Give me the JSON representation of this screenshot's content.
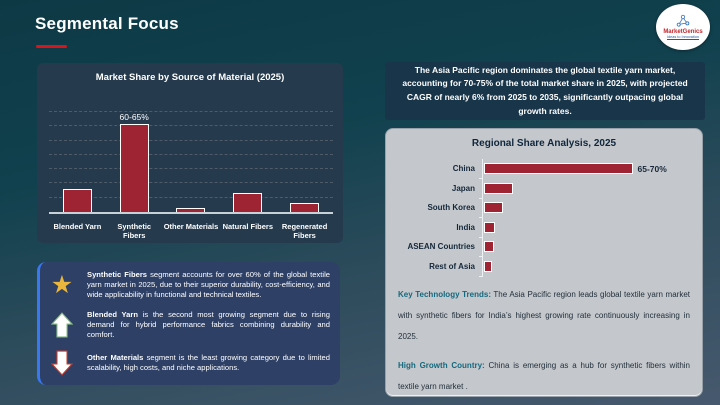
{
  "header": {
    "title": "Segmental Focus"
  },
  "logo": {
    "brand": "MarketGenics",
    "tagline": "Ideas to Innovation"
  },
  "highlight": {
    "text": "The Asia Pacific region dominates the global textile yarn market, accounting for 70-75% of the total market share in 2025, with projected CAGR of nearly 6% from 2025 to 2035, significantly outpacing global growth rates."
  },
  "chart_data": [
    {
      "type": "bar",
      "title": "Market Share by Source of Material (2025)",
      "categories": [
        "Blended Yarn",
        "Synthetic Fibers",
        "Other Materials",
        "Natural Fibers",
        "Regenerated Fibers"
      ],
      "values": [
        16,
        62.5,
        3,
        13,
        6
      ],
      "point_labels": [
        "",
        "60-65%",
        "",
        "",
        ""
      ],
      "xlabel": "",
      "ylabel": "",
      "ylim": [
        0,
        70
      ],
      "grid": "horizontal-dashed",
      "legend": "none",
      "bar_color": "#9e2433"
    },
    {
      "type": "bar-horizontal",
      "title": "Regional Share Analysis, 2025",
      "categories": [
        "China",
        "Japan",
        "South Korea",
        "India",
        "ASEAN Countries",
        "Rest of Asia"
      ],
      "values": [
        67.5,
        13,
        8.5,
        5,
        4.5,
        3.5
      ],
      "point_labels": [
        "65-70%",
        "",
        "",
        "",
        "",
        ""
      ],
      "xlabel": "",
      "ylabel": "",
      "xlim": [
        0,
        75
      ],
      "grid": "off",
      "legend": "none",
      "bar_color": "#9e2433"
    }
  ],
  "regional": {
    "trends_label": "Key Technology Trends:",
    "trends_text": " The Asia Pacific region leads global textile yarn market with synthetic fibers for India’s highest growing rate continuously increasing in 2025.",
    "growth_label": "High Growth Country:",
    "growth_text": " China is emerging as a hub for synthetic fibers within textile yarn market ."
  },
  "insights": {
    "items": [
      {
        "icon": "star-icon",
        "lead": "Synthetic Fibers",
        "text": " segment accounts for over 60% of the global textile yarn market in 2025, due to their superior durability, cost-efficiency, and wide applicability in functional and technical textiles."
      },
      {
        "icon": "up-arrow-icon",
        "lead": "Blended Yarn",
        "text": " is the second most growing segment due to rising demand for hybrid performance fabrics combining durability and comfort."
      },
      {
        "icon": "down-arrow-icon",
        "lead": "Other Materials",
        "text": " segment is the least growing category due to limited scalability, high costs, and niche applications."
      }
    ]
  },
  "colors": {
    "accent_red": "#d6151c",
    "bar_red": "#9e2433",
    "teal_lead": "#15687e",
    "highlight_bg": "#18354a",
    "insight_panel": "#2e4066",
    "insight_border_blue": "#3a78f2",
    "star_gold": "#eab63e",
    "panel_gray": "#c4c8cc"
  }
}
